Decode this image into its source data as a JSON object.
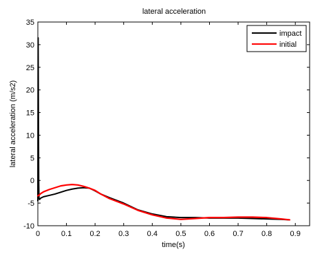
{
  "chart_data": {
    "type": "line",
    "title": "lateral acceleration",
    "xlabel": "time(s)",
    "ylabel": "lateral acceleration (m/s2)",
    "xlim": [
      0,
      0.95
    ],
    "ylim": [
      -10,
      35
    ],
    "xticks": [
      0,
      0.1,
      0.2,
      0.3,
      0.4,
      0.5,
      0.6,
      0.7,
      0.8,
      0.9
    ],
    "xtick_labels": [
      "0",
      "0.1",
      "0.2",
      "0.3",
      "0.4",
      "0.5",
      "0.6",
      "0.7",
      "0.8",
      "0.9"
    ],
    "yticks": [
      -10,
      -5,
      0,
      5,
      10,
      15,
      20,
      25,
      30,
      35
    ],
    "ytick_labels": [
      "-10",
      "-5",
      "0",
      "5",
      "10",
      "15",
      "20",
      "25",
      "30",
      "35"
    ],
    "grid": false,
    "legend_position": "top-right",
    "series": [
      {
        "name": "impact",
        "color": "#000000",
        "x": [
          0,
          0.001,
          0.002,
          0.003,
          0.004,
          0.006,
          0.01,
          0.02,
          0.04,
          0.06,
          0.08,
          0.1,
          0.12,
          0.14,
          0.16,
          0.18,
          0.2,
          0.22,
          0.25,
          0.3,
          0.35,
          0.4,
          0.45,
          0.5,
          0.55,
          0.6,
          0.65,
          0.7,
          0.75,
          0.8,
          0.85,
          0.88
        ],
        "y": [
          -4.5,
          31.5,
          15,
          0,
          -4,
          -4.2,
          -3.9,
          -3.6,
          -3.3,
          -3.0,
          -2.6,
          -2.2,
          -1.9,
          -1.7,
          -1.6,
          -1.7,
          -2.3,
          -3.0,
          -3.8,
          -5.0,
          -6.5,
          -7.4,
          -8.0,
          -8.2,
          -8.2,
          -8.3,
          -8.3,
          -8.3,
          -8.4,
          -8.5,
          -8.6,
          -8.7
        ]
      },
      {
        "name": "initial",
        "color": "#ff0000",
        "x": [
          0,
          0.005,
          0.01,
          0.02,
          0.04,
          0.06,
          0.08,
          0.1,
          0.12,
          0.14,
          0.16,
          0.18,
          0.2,
          0.22,
          0.25,
          0.3,
          0.35,
          0.4,
          0.45,
          0.5,
          0.55,
          0.6,
          0.65,
          0.7,
          0.75,
          0.8,
          0.85,
          0.88
        ],
        "y": [
          -3.4,
          -3.2,
          -2.9,
          -2.5,
          -2.0,
          -1.6,
          -1.2,
          -1.0,
          -0.9,
          -1.0,
          -1.3,
          -1.7,
          -2.2,
          -3.0,
          -4.0,
          -5.2,
          -6.6,
          -7.6,
          -8.3,
          -8.6,
          -8.4,
          -8.2,
          -8.2,
          -8.1,
          -8.1,
          -8.2,
          -8.5,
          -8.7
        ]
      }
    ]
  }
}
